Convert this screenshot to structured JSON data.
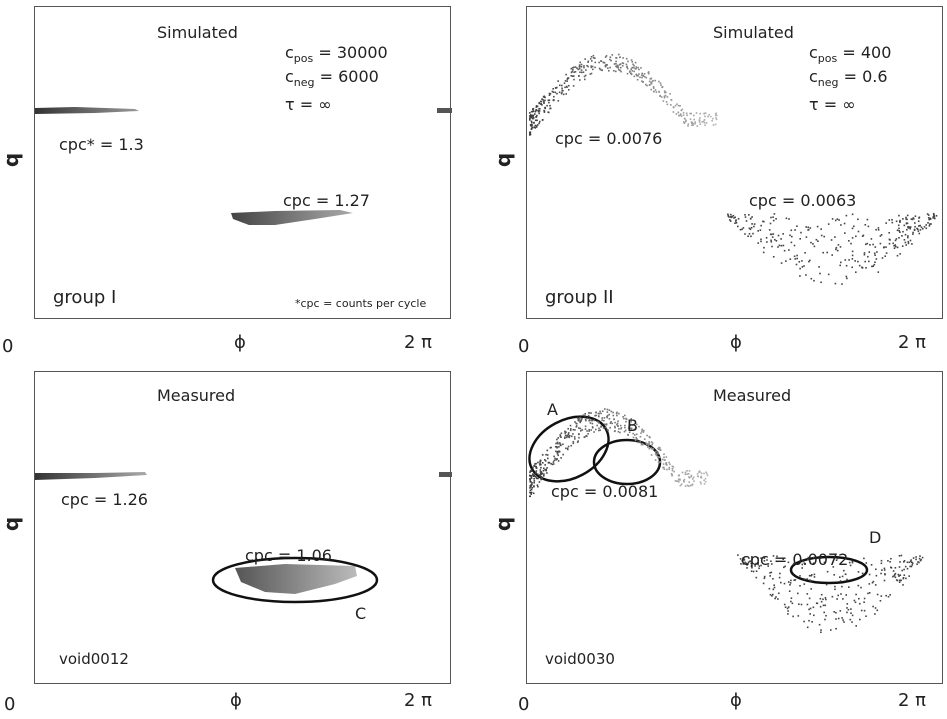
{
  "chart_data": [
    {
      "type": "scatter",
      "heading": "Simulated",
      "corner_label": "group I",
      "params": {
        "c_pos": "30000",
        "c_neg": "6000",
        "tau": "∞"
      },
      "cpc_labels": [
        "cpc* = 1.3",
        "cpc = 1.27"
      ],
      "footnote": "*cpc = counts per cycle",
      "xlabel": "ϕ",
      "ylabel": "q",
      "x_ticks": [
        "0",
        "2 π"
      ]
    },
    {
      "type": "scatter",
      "heading": "Simulated",
      "corner_label": "group II",
      "params": {
        "c_pos": "400",
        "c_neg": "0.6",
        "tau": "∞"
      },
      "cpc_labels": [
        "cpc = 0.0076",
        "cpc = 0.0063"
      ],
      "xlabel": "ϕ",
      "ylabel": "q",
      "x_ticks": [
        "0",
        "2 π"
      ]
    },
    {
      "type": "scatter",
      "heading": "Measured",
      "corner_label": "void0012",
      "cpc_labels": [
        "cpc = 1.26",
        "cpc = 1.06"
      ],
      "annotations": [
        "C"
      ],
      "xlabel": "ϕ",
      "ylabel": "q",
      "x_ticks": [
        "0",
        "2 π"
      ]
    },
    {
      "type": "scatter",
      "heading": "Measured",
      "corner_label": "void0030",
      "cpc_labels": [
        "cpc = 0.0081",
        "cpc = 0.0072"
      ],
      "annotations": [
        "A",
        "B",
        "D"
      ],
      "xlabel": "ϕ",
      "ylabel": "q",
      "x_ticks": [
        "0",
        "2 π"
      ]
    }
  ]
}
